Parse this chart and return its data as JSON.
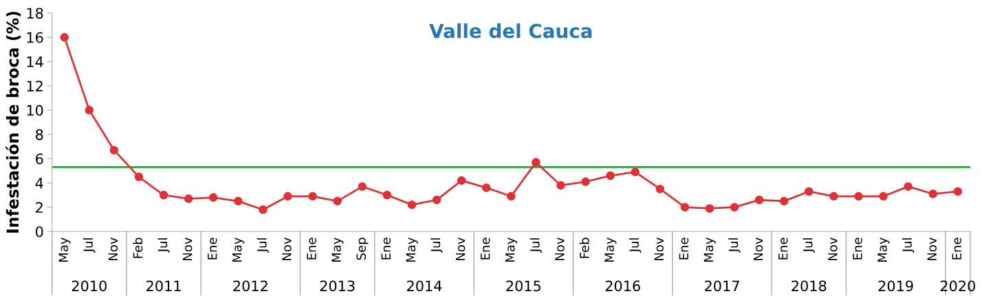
{
  "chart_data": {
    "type": "line",
    "title": "Valle del Cauca",
    "ylabel": "Infestación de broca (%)",
    "categories": [
      "May",
      "Jul",
      "Nov",
      "Feb",
      "Jul",
      "Nov",
      "Ene",
      "May",
      "Jul",
      "Nov",
      "Ene",
      "May",
      "Sep",
      "Ene",
      "May",
      "Jul",
      "Nov",
      "Ene",
      "May",
      "Jul",
      "Nov",
      "Feb",
      "May",
      "Jul",
      "Nov",
      "Ene",
      "May",
      "Jul",
      "Nov",
      "Ene",
      "Jul",
      "Nov",
      "Ene",
      "May",
      "Jul",
      "Nov",
      "Ene"
    ],
    "series": [
      {
        "color": "#e03134",
        "values": [
          16.0,
          10.0,
          6.7,
          4.5,
          3.0,
          2.7,
          2.8,
          2.5,
          1.8,
          2.9,
          2.9,
          2.5,
          3.7,
          3.0,
          2.2,
          2.6,
          4.2,
          3.6,
          2.9,
          5.7,
          3.8,
          4.1,
          4.6,
          4.9,
          3.5,
          2.0,
          1.9,
          2.0,
          2.6,
          2.5,
          3.3,
          2.9,
          2.9,
          2.9,
          3.7,
          3.1,
          3.3
        ]
      }
    ],
    "marker": "circle",
    "line_style": "solid",
    "ylim": [
      0,
      18
    ],
    "yticks": [
      0,
      2,
      4,
      6,
      8,
      10,
      12,
      14,
      16,
      18
    ],
    "grid": false,
    "legend": false,
    "ref_lines": [
      {
        "axis": "y",
        "value": 5.3,
        "color": "#2ca23a",
        "line_style": "solid"
      }
    ],
    "annotations": [
      "2010",
      "2011",
      "2012",
      "2013",
      "2014",
      "2015",
      "2016",
      "2017",
      "2018",
      "2019",
      "2020"
    ]
  }
}
